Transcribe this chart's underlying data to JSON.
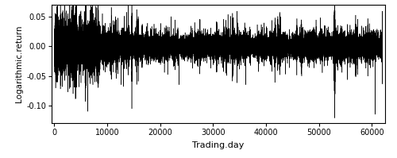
{
  "title": "",
  "xlabel": "Trading.day",
  "ylabel": "Logarithmic.return",
  "xlim": [
    -500,
    62500
  ],
  "ylim": [
    -0.13,
    0.07
  ],
  "yticks": [
    0.05,
    0.0,
    -0.05,
    -0.1
  ],
  "xticks": [
    0,
    10000,
    20000,
    30000,
    40000,
    50000,
    60000
  ],
  "n_points": 62000,
  "line_color": "#000000",
  "background_color": "#ffffff",
  "seed": 42
}
